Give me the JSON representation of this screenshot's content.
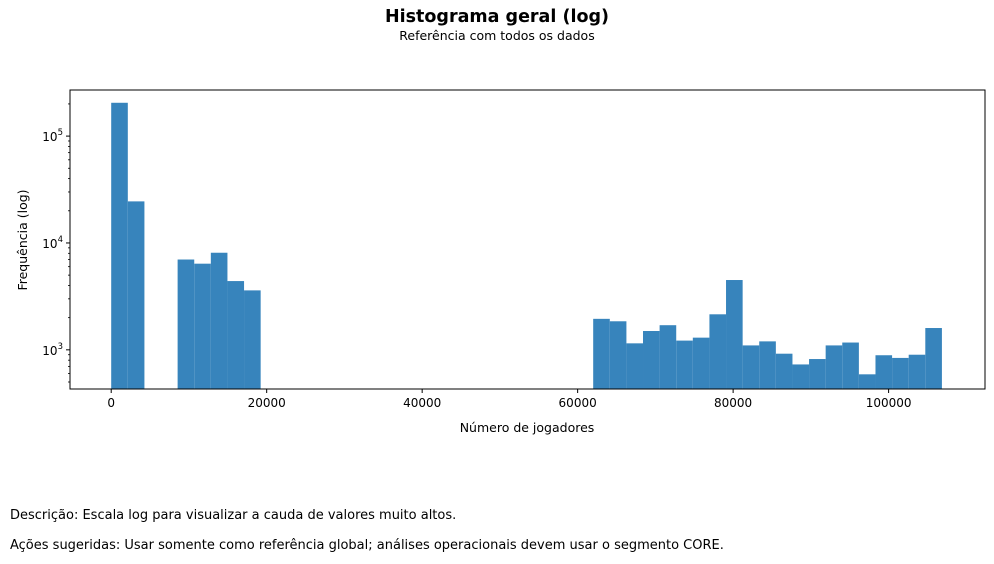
{
  "chart_data": {
    "type": "bar",
    "title": "Histograma geral (log)",
    "subtitle": "Referência com todos os dados",
    "xlabel": "Número de jogadores",
    "ylabel": "Frequência (log)",
    "ylog": true,
    "xlim": [
      -5300,
      112400
    ],
    "ylim": [
      430,
      270000
    ],
    "xticks": [
      0,
      20000,
      40000,
      60000,
      80000,
      100000
    ],
    "xtick_labels": [
      "0",
      "20000",
      "40000",
      "60000",
      "80000",
      "100000"
    ],
    "yticks": [
      1000,
      10000,
      100000
    ],
    "ytick_labels": [
      {
        "base": "10",
        "exp": "3"
      },
      {
        "base": "10",
        "exp": "4"
      },
      {
        "base": "10",
        "exp": "5"
      }
    ],
    "bin_width": 2136,
    "bins": [
      {
        "x0": 0,
        "count": 205000
      },
      {
        "x0": 2136,
        "count": 24500
      },
      {
        "x0": 4272,
        "count": 0
      },
      {
        "x0": 6408,
        "count": 0
      },
      {
        "x0": 8544,
        "count": 7000
      },
      {
        "x0": 10680,
        "count": 6400
      },
      {
        "x0": 12816,
        "count": 8100
      },
      {
        "x0": 14952,
        "count": 4400
      },
      {
        "x0": 17088,
        "count": 3600
      },
      {
        "x0": 62000,
        "count": 1950
      },
      {
        "x0": 64136,
        "count": 1850
      },
      {
        "x0": 66272,
        "count": 1150
      },
      {
        "x0": 68408,
        "count": 1500
      },
      {
        "x0": 70544,
        "count": 1700
      },
      {
        "x0": 72680,
        "count": 1220
      },
      {
        "x0": 74816,
        "count": 1300
      },
      {
        "x0": 76952,
        "count": 2150
      },
      {
        "x0": 79088,
        "count": 4500
      },
      {
        "x0": 81224,
        "count": 1100
      },
      {
        "x0": 83360,
        "count": 1200
      },
      {
        "x0": 85496,
        "count": 920
      },
      {
        "x0": 87632,
        "count": 730
      },
      {
        "x0": 89768,
        "count": 820
      },
      {
        "x0": 91904,
        "count": 1100
      },
      {
        "x0": 94040,
        "count": 1170
      },
      {
        "x0": 96176,
        "count": 590
      },
      {
        "x0": 98312,
        "count": 890
      },
      {
        "x0": 100448,
        "count": 840
      },
      {
        "x0": 102584,
        "count": 900
      },
      {
        "x0": 104720,
        "count": 1600
      }
    ],
    "bar_color": "#3784bc",
    "grid": false,
    "legend": "none"
  },
  "notes": {
    "description": "Descrição: Escala log para visualizar a cauda de valores muito altos.",
    "actions": "Ações sugeridas: Usar somente como referência global; análises operacionais devem usar o segmento CORE."
  }
}
